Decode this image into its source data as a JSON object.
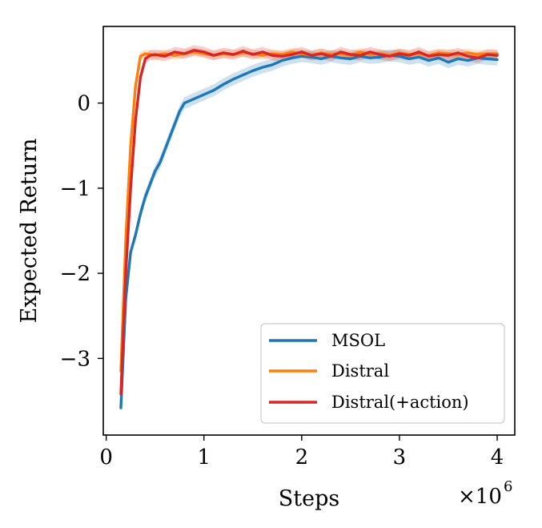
{
  "chart_data": {
    "type": "line",
    "title": "",
    "xlabel": "Steps",
    "ylabel": "Expected Return",
    "x_multiplier": "×10",
    "x_multiplier_exp": "6",
    "xlim": [
      -0.03,
      4.18
    ],
    "ylim": [
      -3.9,
      0.9
    ],
    "xticks": [
      0,
      1,
      2,
      3,
      4
    ],
    "yticks": [
      -3,
      -2,
      -1,
      0
    ],
    "xtick_labels": [
      "0",
      "1",
      "2",
      "3",
      "4"
    ],
    "ytick_labels": [
      "−3",
      "−2",
      "−1",
      "0"
    ],
    "grid": false,
    "legend_position": "lower-right",
    "series": [
      {
        "name": "MSOL",
        "color": "#1f77b4",
        "band_color": "#1f77b4",
        "x": [
          0.15,
          0.2,
          0.25,
          0.3,
          0.35,
          0.4,
          0.45,
          0.5,
          0.55,
          0.6,
          0.65,
          0.7,
          0.75,
          0.8,
          0.9,
          1.0,
          1.1,
          1.2,
          1.3,
          1.4,
          1.5,
          1.6,
          1.7,
          1.8,
          1.9,
          2.0,
          2.1,
          2.2,
          2.3,
          2.4,
          2.5,
          2.6,
          2.7,
          2.8,
          2.9,
          3.0,
          3.1,
          3.2,
          3.3,
          3.4,
          3.5,
          3.6,
          3.7,
          3.8,
          3.9,
          4.0
        ],
        "y": [
          -3.58,
          -2.3,
          -1.75,
          -1.55,
          -1.3,
          -1.1,
          -0.95,
          -0.8,
          -0.7,
          -0.55,
          -0.4,
          -0.25,
          -0.1,
          0.0,
          0.05,
          0.1,
          0.15,
          0.22,
          0.28,
          0.33,
          0.38,
          0.42,
          0.45,
          0.5,
          0.53,
          0.55,
          0.54,
          0.52,
          0.55,
          0.53,
          0.52,
          0.55,
          0.53,
          0.54,
          0.56,
          0.55,
          0.52,
          0.54,
          0.5,
          0.53,
          0.48,
          0.52,
          0.5,
          0.53,
          0.52,
          0.51
        ],
        "band": 0.07
      },
      {
        "name": "Distral",
        "color": "#ff7f0e",
        "band_color": "#ff7f0e",
        "x": [
          0.15,
          0.2,
          0.25,
          0.3,
          0.35,
          0.4,
          0.45,
          0.5,
          0.6,
          0.7,
          0.8,
          0.9,
          1.0,
          1.1,
          1.2,
          1.3,
          1.4,
          1.5,
          1.6,
          1.7,
          1.8,
          1.9,
          2.0,
          2.1,
          2.2,
          2.3,
          2.4,
          2.5,
          2.6,
          2.7,
          2.8,
          2.9,
          3.0,
          3.1,
          3.2,
          3.3,
          3.4,
          3.5,
          3.6,
          3.7,
          3.8,
          3.9,
          4.0
        ],
        "y": [
          -3.15,
          -1.6,
          -0.5,
          0.2,
          0.55,
          0.58,
          0.57,
          0.56,
          0.58,
          0.56,
          0.58,
          0.6,
          0.58,
          0.56,
          0.58,
          0.57,
          0.59,
          0.58,
          0.56,
          0.58,
          0.57,
          0.6,
          0.58,
          0.56,
          0.59,
          0.57,
          0.58,
          0.56,
          0.6,
          0.57,
          0.58,
          0.56,
          0.59,
          0.57,
          0.58,
          0.56,
          0.59,
          0.58,
          0.57,
          0.59,
          0.57,
          0.58,
          0.58
        ],
        "band": 0.05
      },
      {
        "name": "Distral(+action)",
        "color": "#d62728",
        "band_color": "#d62728",
        "x": [
          0.15,
          0.2,
          0.25,
          0.3,
          0.35,
          0.4,
          0.45,
          0.5,
          0.6,
          0.7,
          0.8,
          0.9,
          1.0,
          1.1,
          1.2,
          1.3,
          1.4,
          1.5,
          1.6,
          1.7,
          1.8,
          1.9,
          2.0,
          2.1,
          2.2,
          2.3,
          2.4,
          2.5,
          2.6,
          2.7,
          2.8,
          2.9,
          3.0,
          3.1,
          3.2,
          3.3,
          3.4,
          3.5,
          3.6,
          3.7,
          3.8,
          3.9,
          4.0
        ],
        "y": [
          -3.42,
          -2.0,
          -1.0,
          -0.2,
          0.3,
          0.52,
          0.56,
          0.57,
          0.55,
          0.6,
          0.58,
          0.62,
          0.6,
          0.56,
          0.59,
          0.57,
          0.61,
          0.57,
          0.6,
          0.56,
          0.55,
          0.57,
          0.6,
          0.56,
          0.58,
          0.55,
          0.6,
          0.57,
          0.56,
          0.6,
          0.57,
          0.55,
          0.58,
          0.56,
          0.6,
          0.55,
          0.57,
          0.56,
          0.59,
          0.55,
          0.53,
          0.57,
          0.56
        ],
        "band": 0.06
      }
    ]
  }
}
